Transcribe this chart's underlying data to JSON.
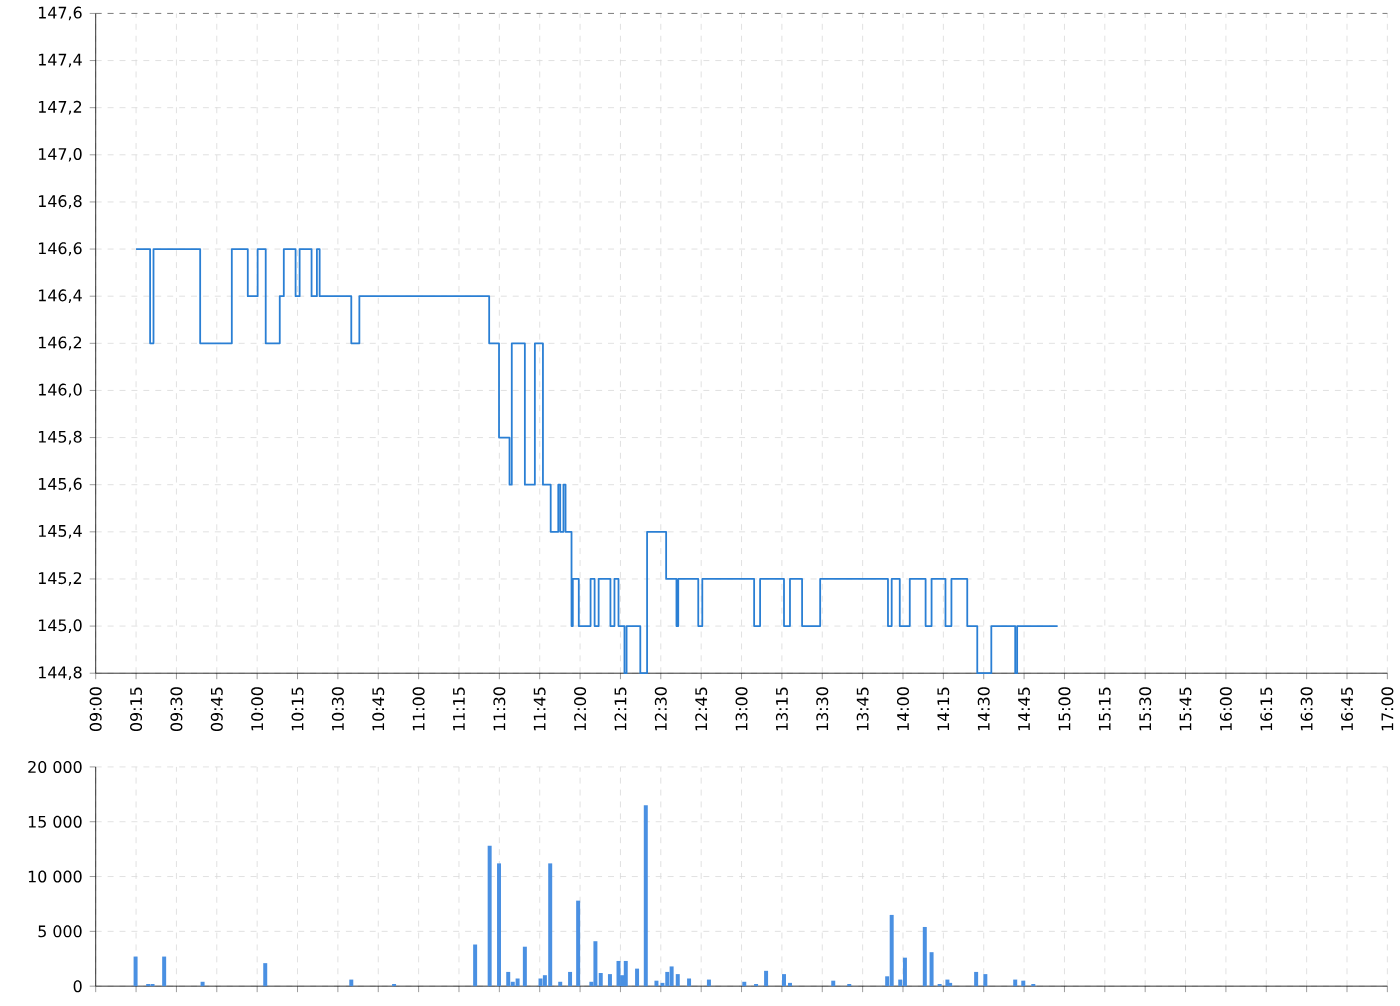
{
  "chart_data": [
    {
      "type": "step",
      "xlim": [
        9,
        17
      ],
      "ylim": [
        144.8,
        147.6
      ],
      "grid": true,
      "xticks": [
        {
          "value": 9,
          "label": "09:00"
        },
        {
          "value": 9.25,
          "label": "09:15"
        },
        {
          "value": 9.5,
          "label": "09:30"
        },
        {
          "value": 9.75,
          "label": "09:45"
        },
        {
          "value": 10,
          "label": "10:00"
        },
        {
          "value": 10.25,
          "label": "10:15"
        },
        {
          "value": 10.5,
          "label": "10:30"
        },
        {
          "value": 10.75,
          "label": "10:45"
        },
        {
          "value": 11,
          "label": "11:00"
        },
        {
          "value": 11.25,
          "label": "11:15"
        },
        {
          "value": 11.5,
          "label": "11:30"
        },
        {
          "value": 11.75,
          "label": "11:45"
        },
        {
          "value": 12,
          "label": "12:00"
        },
        {
          "value": 12.25,
          "label": "12:15"
        },
        {
          "value": 12.5,
          "label": "12:30"
        },
        {
          "value": 12.75,
          "label": "12:45"
        },
        {
          "value": 13,
          "label": "13:00"
        },
        {
          "value": 13.25,
          "label": "13:15"
        },
        {
          "value": 13.5,
          "label": "13:30"
        },
        {
          "value": 13.75,
          "label": "13:45"
        },
        {
          "value": 14,
          "label": "14:00"
        },
        {
          "value": 14.25,
          "label": "14:15"
        },
        {
          "value": 14.5,
          "label": "14:30"
        },
        {
          "value": 14.75,
          "label": "14:45"
        },
        {
          "value": 15,
          "label": "15:00"
        },
        {
          "value": 15.25,
          "label": "15:15"
        },
        {
          "value": 15.5,
          "label": "15:30"
        },
        {
          "value": 15.75,
          "label": "15:45"
        },
        {
          "value": 16,
          "label": "16:00"
        },
        {
          "value": 16.25,
          "label": "16:15"
        },
        {
          "value": 16.5,
          "label": "16:30"
        },
        {
          "value": 16.75,
          "label": "16:45"
        },
        {
          "value": 17,
          "label": "17:00"
        }
      ],
      "yticks": [
        {
          "value": 144.8,
          "label": "144,8"
        },
        {
          "value": 145.0,
          "label": "145,0"
        },
        {
          "value": 145.2,
          "label": "145,2"
        },
        {
          "value": 145.4,
          "label": "145,4"
        },
        {
          "value": 145.6,
          "label": "145,6"
        },
        {
          "value": 145.8,
          "label": "145,8"
        },
        {
          "value": 146.0,
          "label": "146,0"
        },
        {
          "value": 146.2,
          "label": "146,2"
        },
        {
          "value": 146.4,
          "label": "146,4"
        },
        {
          "value": 146.6,
          "label": "146,6"
        },
        {
          "value": 146.8,
          "label": "146,8"
        },
        {
          "value": 147.0,
          "label": "147,0"
        },
        {
          "value": 147.2,
          "label": "147,2"
        },
        {
          "value": 147.4,
          "label": "147,4"
        },
        {
          "value": 147.6,
          "label": "147,6"
        }
      ],
      "series": [
        {
          "color": "#2a7fd4",
          "x": [
            9.25,
            9.337,
            9.358,
            9.647,
            9.843,
            9.942,
            10.003,
            10.053,
            10.14,
            10.165,
            10.238,
            10.263,
            10.337,
            10.37,
            10.387,
            10.583,
            10.633,
            11.437,
            11.498,
            11.563,
            11.577,
            11.658,
            11.72,
            11.77,
            11.818,
            11.865,
            11.877,
            11.897,
            11.91,
            11.947,
            11.955,
            11.992,
            12.065,
            12.09,
            12.115,
            12.188,
            12.213,
            12.238,
            12.275,
            12.288,
            12.373,
            12.415,
            12.533,
            12.597,
            12.608,
            12.732,
            12.757,
            13.078,
            13.115,
            13.263,
            13.3,
            13.375,
            13.487,
            13.907,
            13.93,
            13.98,
            14.042,
            14.14,
            14.177,
            14.263,
            14.3,
            14.398,
            14.46,
            14.547,
            14.695,
            14.707,
            14.958
          ],
          "values": [
            146.6,
            146.2,
            146.6,
            146.2,
            146.6,
            146.4,
            146.6,
            146.2,
            146.4,
            146.6,
            146.4,
            146.6,
            146.4,
            146.6,
            146.4,
            146.2,
            146.4,
            146.2,
            145.8,
            145.6,
            146.2,
            145.6,
            146.2,
            145.6,
            145.4,
            145.6,
            145.4,
            145.6,
            145.4,
            145.0,
            145.2,
            145.0,
            145.2,
            145.0,
            145.2,
            145.0,
            145.2,
            145.0,
            144.8,
            145.0,
            144.8,
            145.4,
            145.2,
            145.0,
            145.2,
            145.0,
            145.2,
            145.0,
            145.2,
            145.0,
            145.2,
            145.0,
            145.2,
            145.0,
            145.2,
            145.0,
            145.2,
            145.0,
            145.2,
            145.0,
            145.2,
            145.0,
            144.8,
            145.0,
            144.8,
            145.0,
            145.0
          ]
        }
      ]
    },
    {
      "type": "bar",
      "xlim": [
        9,
        17
      ],
      "ylim": [
        0,
        20000
      ],
      "grid": true,
      "tick_labels": "y",
      "xticks": [
        9,
        9.25,
        9.5,
        9.75,
        10,
        10.25,
        10.5,
        10.75,
        11,
        11.25,
        11.5,
        11.75,
        12,
        12.25,
        12.5,
        12.75,
        13,
        13.25,
        13.5,
        13.75,
        14,
        14.25,
        14.5,
        14.75,
        15,
        15.25,
        15.5,
        15.75,
        16,
        16.25,
        16.5,
        16.75,
        17
      ],
      "yticks": [
        0,
        {
          "value": 5000,
          "label": "5 000"
        },
        {
          "value": 10000,
          "label": "10 000"
        },
        {
          "value": 15000,
          "label": "15 000"
        },
        {
          "value": 20000,
          "label": "20 000"
        }
      ],
      "series": [
        {
          "color": "#4a90e2",
          "x": [
            9.247,
            9.325,
            9.352,
            9.424,
            9.662,
            10.05,
            10.583,
            10.848,
            11.35,
            11.44,
            11.498,
            11.555,
            11.583,
            11.613,
            11.658,
            11.755,
            11.782,
            11.815,
            11.877,
            11.938,
            11.988,
            12.07,
            12.095,
            12.128,
            12.185,
            12.238,
            12.26,
            12.283,
            12.353,
            12.407,
            12.473,
            12.51,
            12.54,
            12.567,
            12.605,
            12.675,
            12.798,
            13.017,
            13.09,
            13.152,
            13.263,
            13.3,
            13.568,
            13.667,
            13.902,
            13.93,
            13.983,
            14.012,
            14.135,
            14.177,
            14.227,
            14.275,
            14.292,
            14.453,
            14.51,
            14.695,
            14.745,
            14.807
          ],
          "values": [
            2700,
            200,
            200,
            2700,
            400,
            2100,
            600,
            200,
            3800,
            12800,
            11200,
            1300,
            400,
            700,
            3600,
            700,
            1000,
            11200,
            400,
            1300,
            7800,
            400,
            4100,
            1200,
            1100,
            2300,
            1000,
            2300,
            1600,
            16500,
            500,
            300,
            1300,
            1800,
            1100,
            700,
            600,
            400,
            200,
            1400,
            1100,
            300,
            500,
            200,
            900,
            6500,
            600,
            2600,
            5400,
            3100,
            200,
            600,
            300,
            1300,
            1100,
            600,
            500,
            200
          ]
        }
      ]
    }
  ]
}
